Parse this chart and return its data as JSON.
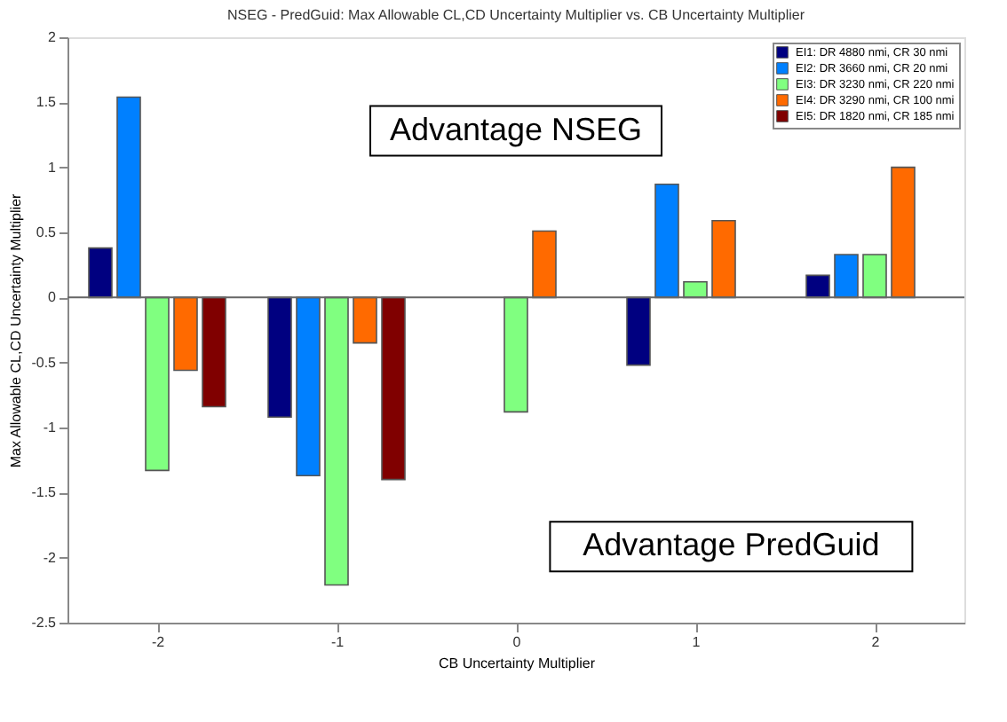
{
  "chart_data": {
    "type": "bar",
    "title": "NSEG - PredGuid: Max Allowable CL,CD Uncertainty Multiplier vs. CB Uncertainty Multiplier",
    "xlabel": "CB Uncertainty Multiplier",
    "ylabel": "Max Allowable CL,CD Uncertainty Multiplier",
    "x": [
      -2,
      -1,
      0,
      1,
      2
    ],
    "series": [
      {
        "name": "EI1: DR 4880 nmi, CR 30 nmi",
        "color": "#000080",
        "values": [
          0.38,
          -0.92,
          null,
          -0.52,
          0.17
        ]
      },
      {
        "name": "EI2: DR 3660 nmi, CR 20 nmi",
        "color": "#0080ff",
        "values": [
          1.54,
          -1.37,
          null,
          0.87,
          0.33
        ]
      },
      {
        "name": "EI3: DR 3230 nmi, CR 220 nmi",
        "color": "#80ff80",
        "values": [
          -1.33,
          -2.21,
          -0.88,
          0.12,
          0.33
        ]
      },
      {
        "name": "EI4: DR 3290 nmi, CR 100 nmi",
        "color": "#ff6a00",
        "values": [
          -0.56,
          -0.35,
          0.51,
          0.59,
          1.0
        ]
      },
      {
        "name": "EI5: DR 1820 nmi, CR 185 nmi",
        "color": "#800000",
        "values": [
          -0.84,
          -1.4,
          null,
          null,
          null
        ]
      }
    ],
    "xlim": [
      -2.5,
      2.5
    ],
    "xticks": [
      -2,
      -1,
      0,
      1,
      2
    ],
    "ylim": [
      -2.5,
      2
    ],
    "yticks": [
      -2.5,
      -2,
      -1.5,
      -1,
      -0.5,
      0,
      0.5,
      1,
      1.5,
      2
    ],
    "ref_lines": [
      {
        "axis": "y",
        "value": 0
      }
    ],
    "annotations": [
      "Advantage NSEG",
      "Advantage PredGuid"
    ],
    "legend": "top right",
    "grid": false
  }
}
